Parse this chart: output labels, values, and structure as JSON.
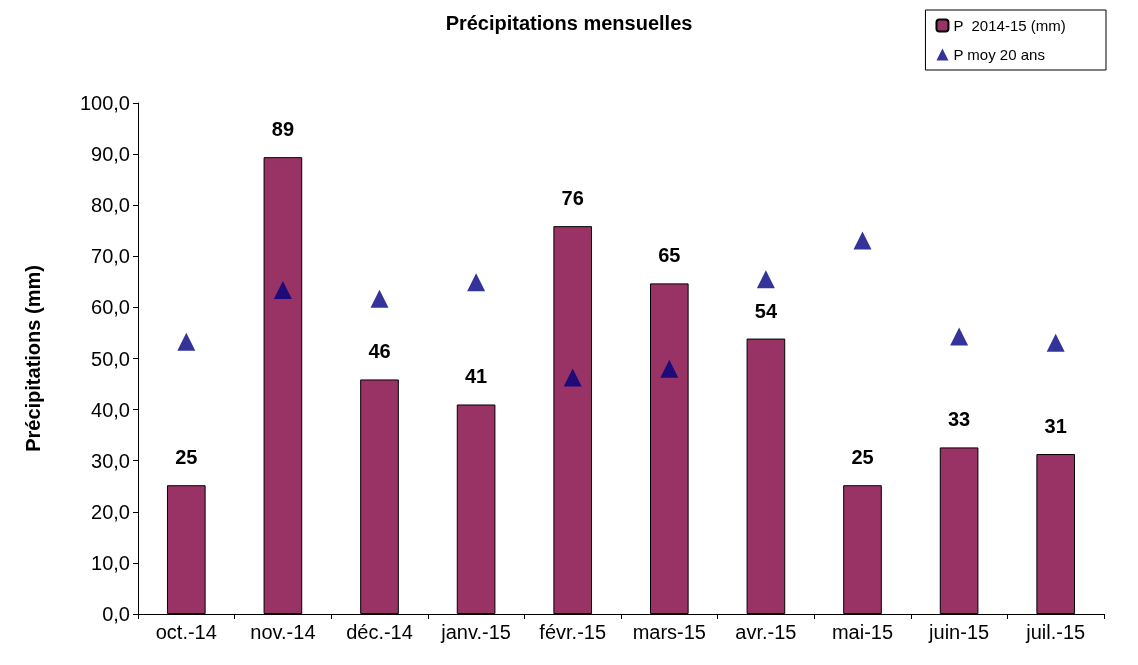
{
  "chart_data": {
    "type": "bar",
    "title": "Précipitations mensuelles",
    "ylabel": "Précipitations (mm)",
    "categories": [
      "oct.-14",
      "nov.-14",
      "déc.-14",
      "janv.-15",
      "févr.-15",
      "mars-15",
      "avr.-15",
      "mai-15",
      "juin-15",
      "juil.-15"
    ],
    "series": [
      {
        "name": "P  2014-15 (mm)",
        "color": "#993366",
        "values": [
          25.2,
          89.4,
          45.9,
          41.0,
          75.9,
          64.7,
          53.9,
          25.2,
          32.6,
          31.3
        ],
        "value_labels": [
          "25",
          "89",
          "46",
          "41",
          "76",
          "65",
          "54",
          "25",
          "33",
          "31"
        ]
      },
      {
        "name": "P moy 20 ans",
        "type": "scatter",
        "marker": "triangle",
        "color": "#000080",
        "values": [
          53.3,
          63.4,
          61.7,
          64.9,
          46.3,
          48.0,
          65.5,
          73.1,
          54.3,
          53.1
        ]
      }
    ],
    "ylim": [
      0,
      100
    ],
    "yticks": [
      {
        "value": 0,
        "label": "0,0"
      },
      {
        "value": 10,
        "label": "10,0"
      },
      {
        "value": 20,
        "label": "20,0"
      },
      {
        "value": 30,
        "label": "30,0"
      },
      {
        "value": 40,
        "label": "40,0"
      },
      {
        "value": 50,
        "label": "50,0"
      },
      {
        "value": 60,
        "label": "60,0"
      },
      {
        "value": 70,
        "label": "70,0"
      },
      {
        "value": 80,
        "label": "80,0"
      },
      {
        "value": 90,
        "label": "90,0"
      },
      {
        "value": 100,
        "label": "100,0"
      }
    ],
    "grid": false,
    "legend": "top right"
  }
}
